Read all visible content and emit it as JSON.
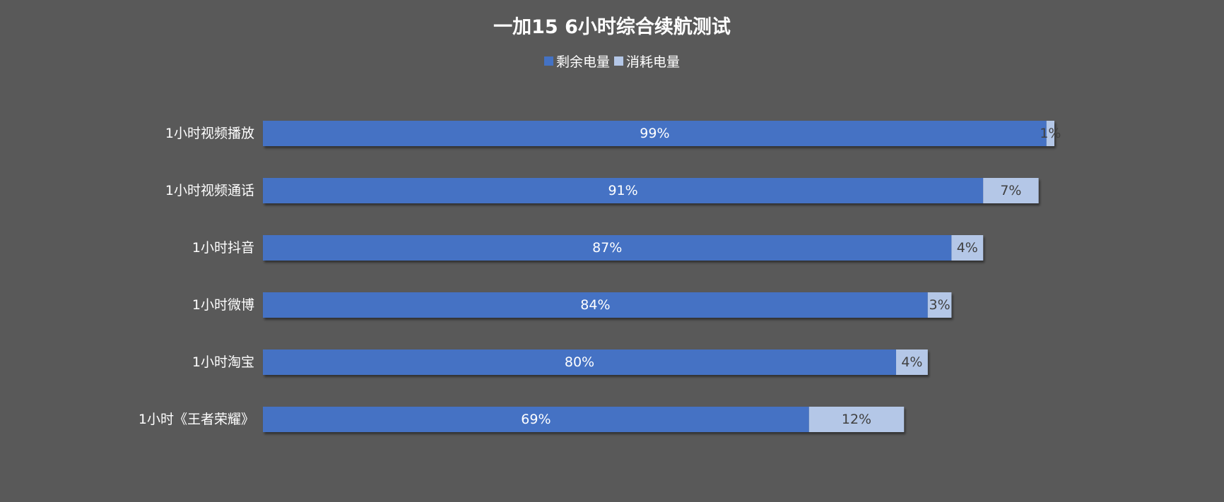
{
  "chart_data": {
    "type": "bar",
    "orientation": "horizontal",
    "stacked": true,
    "title": "一加15 6小时综合续航测试",
    "categories": [
      "1小时视频播放",
      "1小时视频通话",
      "1小时抖音",
      "1小时微博",
      "1小时淘宝",
      "1小时《王者荣耀》"
    ],
    "series": [
      {
        "name": "剩余电量",
        "color": "#4472c4",
        "label_color": "#ffffff",
        "values": [
          99,
          91,
          87,
          84,
          80,
          69
        ],
        "labels": [
          "99%",
          "91%",
          "87%",
          "84%",
          "80%",
          "69%"
        ]
      },
      {
        "name": "消耗电量",
        "color": "#b4c7e7",
        "label_color": "#404040",
        "values": [
          1,
          7,
          4,
          3,
          4,
          12
        ],
        "labels": [
          "1%",
          "7%",
          "4%",
          "3%",
          "4%",
          "12%"
        ]
      }
    ],
    "xlim": [
      0,
      100
    ],
    "legend_position": "top",
    "grid": false,
    "background": "#595959"
  }
}
